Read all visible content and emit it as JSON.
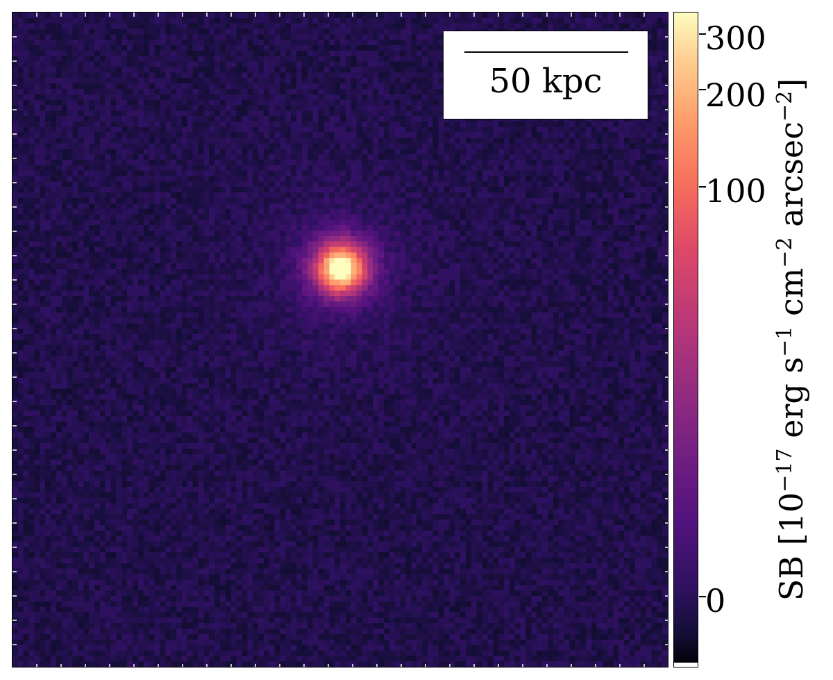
{
  "image": {
    "colormap": "magma",
    "background_color": "#1c0f38",
    "source_peak_color": "#fcfdbf"
  },
  "scalebar": {
    "label": "50 kpc"
  },
  "colorbar": {
    "tick_labels": [
      "300",
      "200",
      "100",
      "0"
    ],
    "tick_values": [
      300,
      200,
      100,
      0
    ],
    "label_prefix": "SB [10",
    "exp1": "−17",
    "label_mid1": " erg s",
    "exp2": "−1",
    "label_mid2": " cm",
    "exp3": "−2",
    "label_mid3": " arcsec",
    "exp4": "−2",
    "label_suffix": "]"
  }
}
